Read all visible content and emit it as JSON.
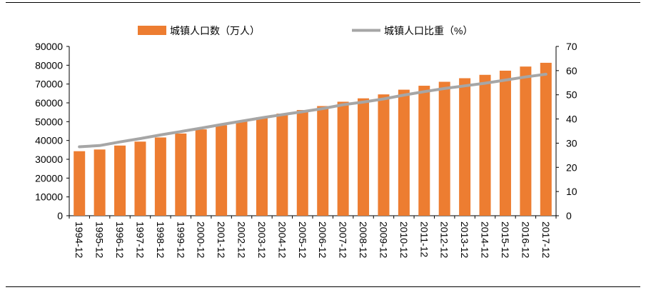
{
  "chart_data": {
    "type": "bar",
    "categories": [
      "1994-12",
      "1995-12",
      "1996-12",
      "1997-12",
      "1998-12",
      "1999-12",
      "2000-12",
      "2001-12",
      "2002-12",
      "2003-12",
      "2004-12",
      "2005-12",
      "2006-12",
      "2007-12",
      "2008-12",
      "2009-12",
      "2010-12",
      "2011-12",
      "2012-12",
      "2013-12",
      "2014-12",
      "2015-12",
      "2016-12",
      "2017-12"
    ],
    "series": [
      {
        "name": "城镇人口数（万人）",
        "type": "bar",
        "axis": "left",
        "color": "#ED7D31",
        "values": [
          34300,
          35200,
          37300,
          39400,
          41600,
          43700,
          45900,
          48100,
          50200,
          52400,
          54300,
          56200,
          58300,
          60600,
          62400,
          64500,
          67000,
          69100,
          71200,
          73100,
          74900,
          77100,
          79300,
          81300
        ]
      },
      {
        "name": "城镇人口比重（%）",
        "type": "line",
        "axis": "right",
        "color": "#A6A6A6",
        "values": [
          28.5,
          29.0,
          30.5,
          31.9,
          33.4,
          34.8,
          36.2,
          37.7,
          39.1,
          40.5,
          41.8,
          43.0,
          44.3,
          45.9,
          47.0,
          48.3,
          49.9,
          51.3,
          52.6,
          53.7,
          54.8,
          56.1,
          57.4,
          58.5
        ]
      }
    ],
    "y_left": {
      "ticks": [
        "0",
        "10000",
        "20000",
        "30000",
        "40000",
        "50000",
        "60000",
        "70000",
        "80000",
        "90000"
      ],
      "range": [
        0,
        90000
      ]
    },
    "y_right": {
      "ticks": [
        "0",
        "10",
        "20",
        "30",
        "40",
        "50",
        "60",
        "70"
      ],
      "range": [
        0,
        70
      ]
    },
    "grid": false,
    "legend_placement": "top"
  }
}
